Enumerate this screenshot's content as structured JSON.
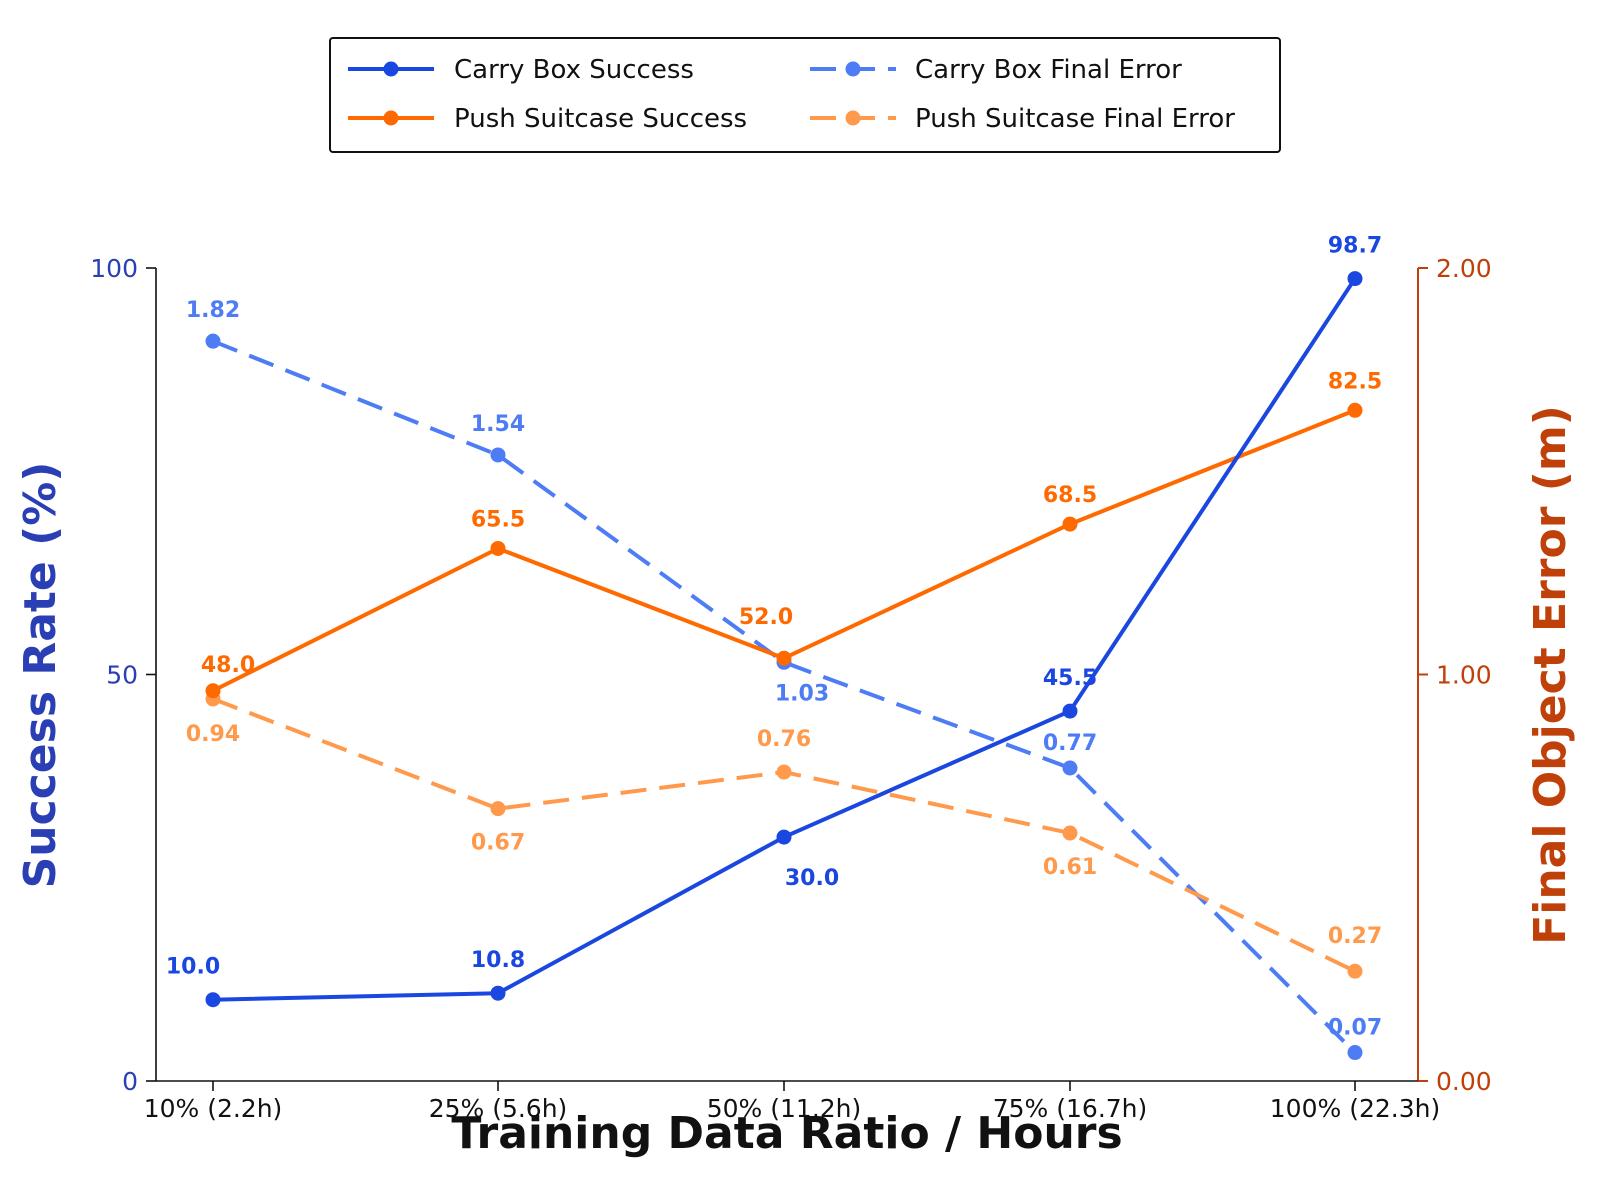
{
  "chart_data": {
    "type": "line",
    "xlabel": "Training Data Ratio / Hours",
    "ylabel_left": "Success Rate (%)",
    "ylabel_right": "Final Object Error (m)",
    "categories": [
      "10% (2.2h)",
      "25% (5.6h)",
      "50% (11.2h)",
      "75% (16.7h)",
      "100% (22.3h)"
    ],
    "ylim_left": [
      0,
      100
    ],
    "ylim_right": [
      0,
      2
    ],
    "left_ticks": [
      "0",
      "50",
      "100"
    ],
    "right_ticks": [
      "0.00",
      "1.00",
      "2.00"
    ],
    "left_axis_color": "#2b3fb5",
    "right_axis_color": "#c0400a",
    "legend_position": "top-center",
    "grid": false,
    "series": [
      {
        "name": "Carry Box Success",
        "axis": "left",
        "style": "solid",
        "color": "#1a47e0",
        "values": [
          10.0,
          10.8,
          30.0,
          45.5,
          98.7
        ],
        "labels": [
          "10.0",
          "10.8",
          "30.0",
          "45.5",
          "98.7"
        ]
      },
      {
        "name": "Push Suitcase Success",
        "axis": "left",
        "style": "solid",
        "color": "#ff6a00",
        "values": [
          48.0,
          65.5,
          52.0,
          68.5,
          82.5
        ],
        "labels": [
          "48.0",
          "65.5",
          "52.0",
          "68.5",
          "82.5"
        ]
      },
      {
        "name": "Carry Box Final Error",
        "axis": "right",
        "style": "dashed",
        "color": "#4d7cf5",
        "values": [
          1.82,
          1.54,
          1.03,
          0.77,
          0.07
        ],
        "labels": [
          "1.82",
          "1.54",
          "1.03",
          "0.77",
          "0.07"
        ]
      },
      {
        "name": "Push Suitcase Final Error",
        "axis": "right",
        "style": "dashed",
        "color": "#ff9a4d",
        "values": [
          0.94,
          0.67,
          0.76,
          0.61,
          0.27
        ],
        "labels": [
          "0.94",
          "0.67",
          "0.76",
          "0.61",
          "0.27"
        ]
      }
    ]
  }
}
